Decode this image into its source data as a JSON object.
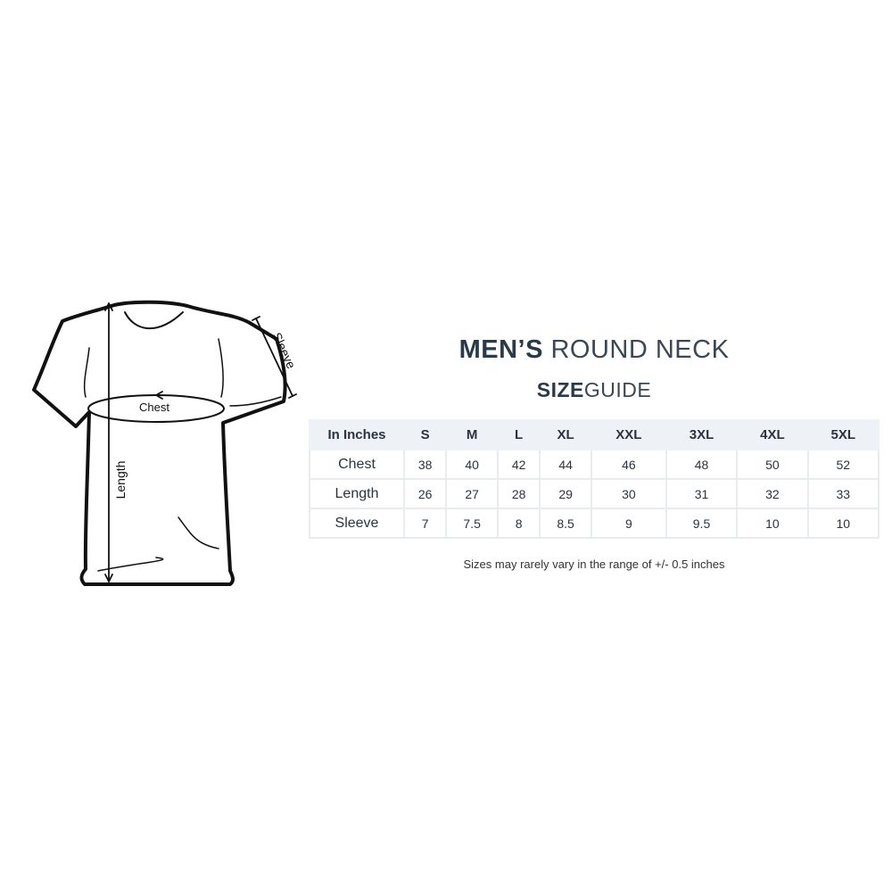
{
  "title": {
    "line1_bold": "MEN’S",
    "line1_rest": "ROUND NECK",
    "line2_bold": "SIZE",
    "line2_rest": "GUIDE"
  },
  "diagram": {
    "labels": {
      "chest": "Chest",
      "length": "Length",
      "sleeve": "Sleeve"
    }
  },
  "table": {
    "header": [
      "In Inches",
      "S",
      "M",
      "L",
      "XL",
      "XXL",
      "3XL",
      "4XL",
      "5XL"
    ],
    "rows": [
      {
        "label": "Chest",
        "values": [
          "38",
          "40",
          "42",
          "44",
          "46",
          "48",
          "50",
          "52"
        ]
      },
      {
        "label": "Length",
        "values": [
          "26",
          "27",
          "28",
          "29",
          "30",
          "31",
          "32",
          "33"
        ]
      },
      {
        "label": "Sleeve",
        "values": [
          "7",
          "7.5",
          "8",
          "8.5",
          "9",
          "9.5",
          "10",
          "10"
        ]
      }
    ]
  },
  "note": "Sizes may rarely vary in the range of +/- 0.5 inches",
  "colors": {
    "title": "#2a3a4d",
    "header_bg": "#eef1f5",
    "border": "#e8ebef"
  }
}
